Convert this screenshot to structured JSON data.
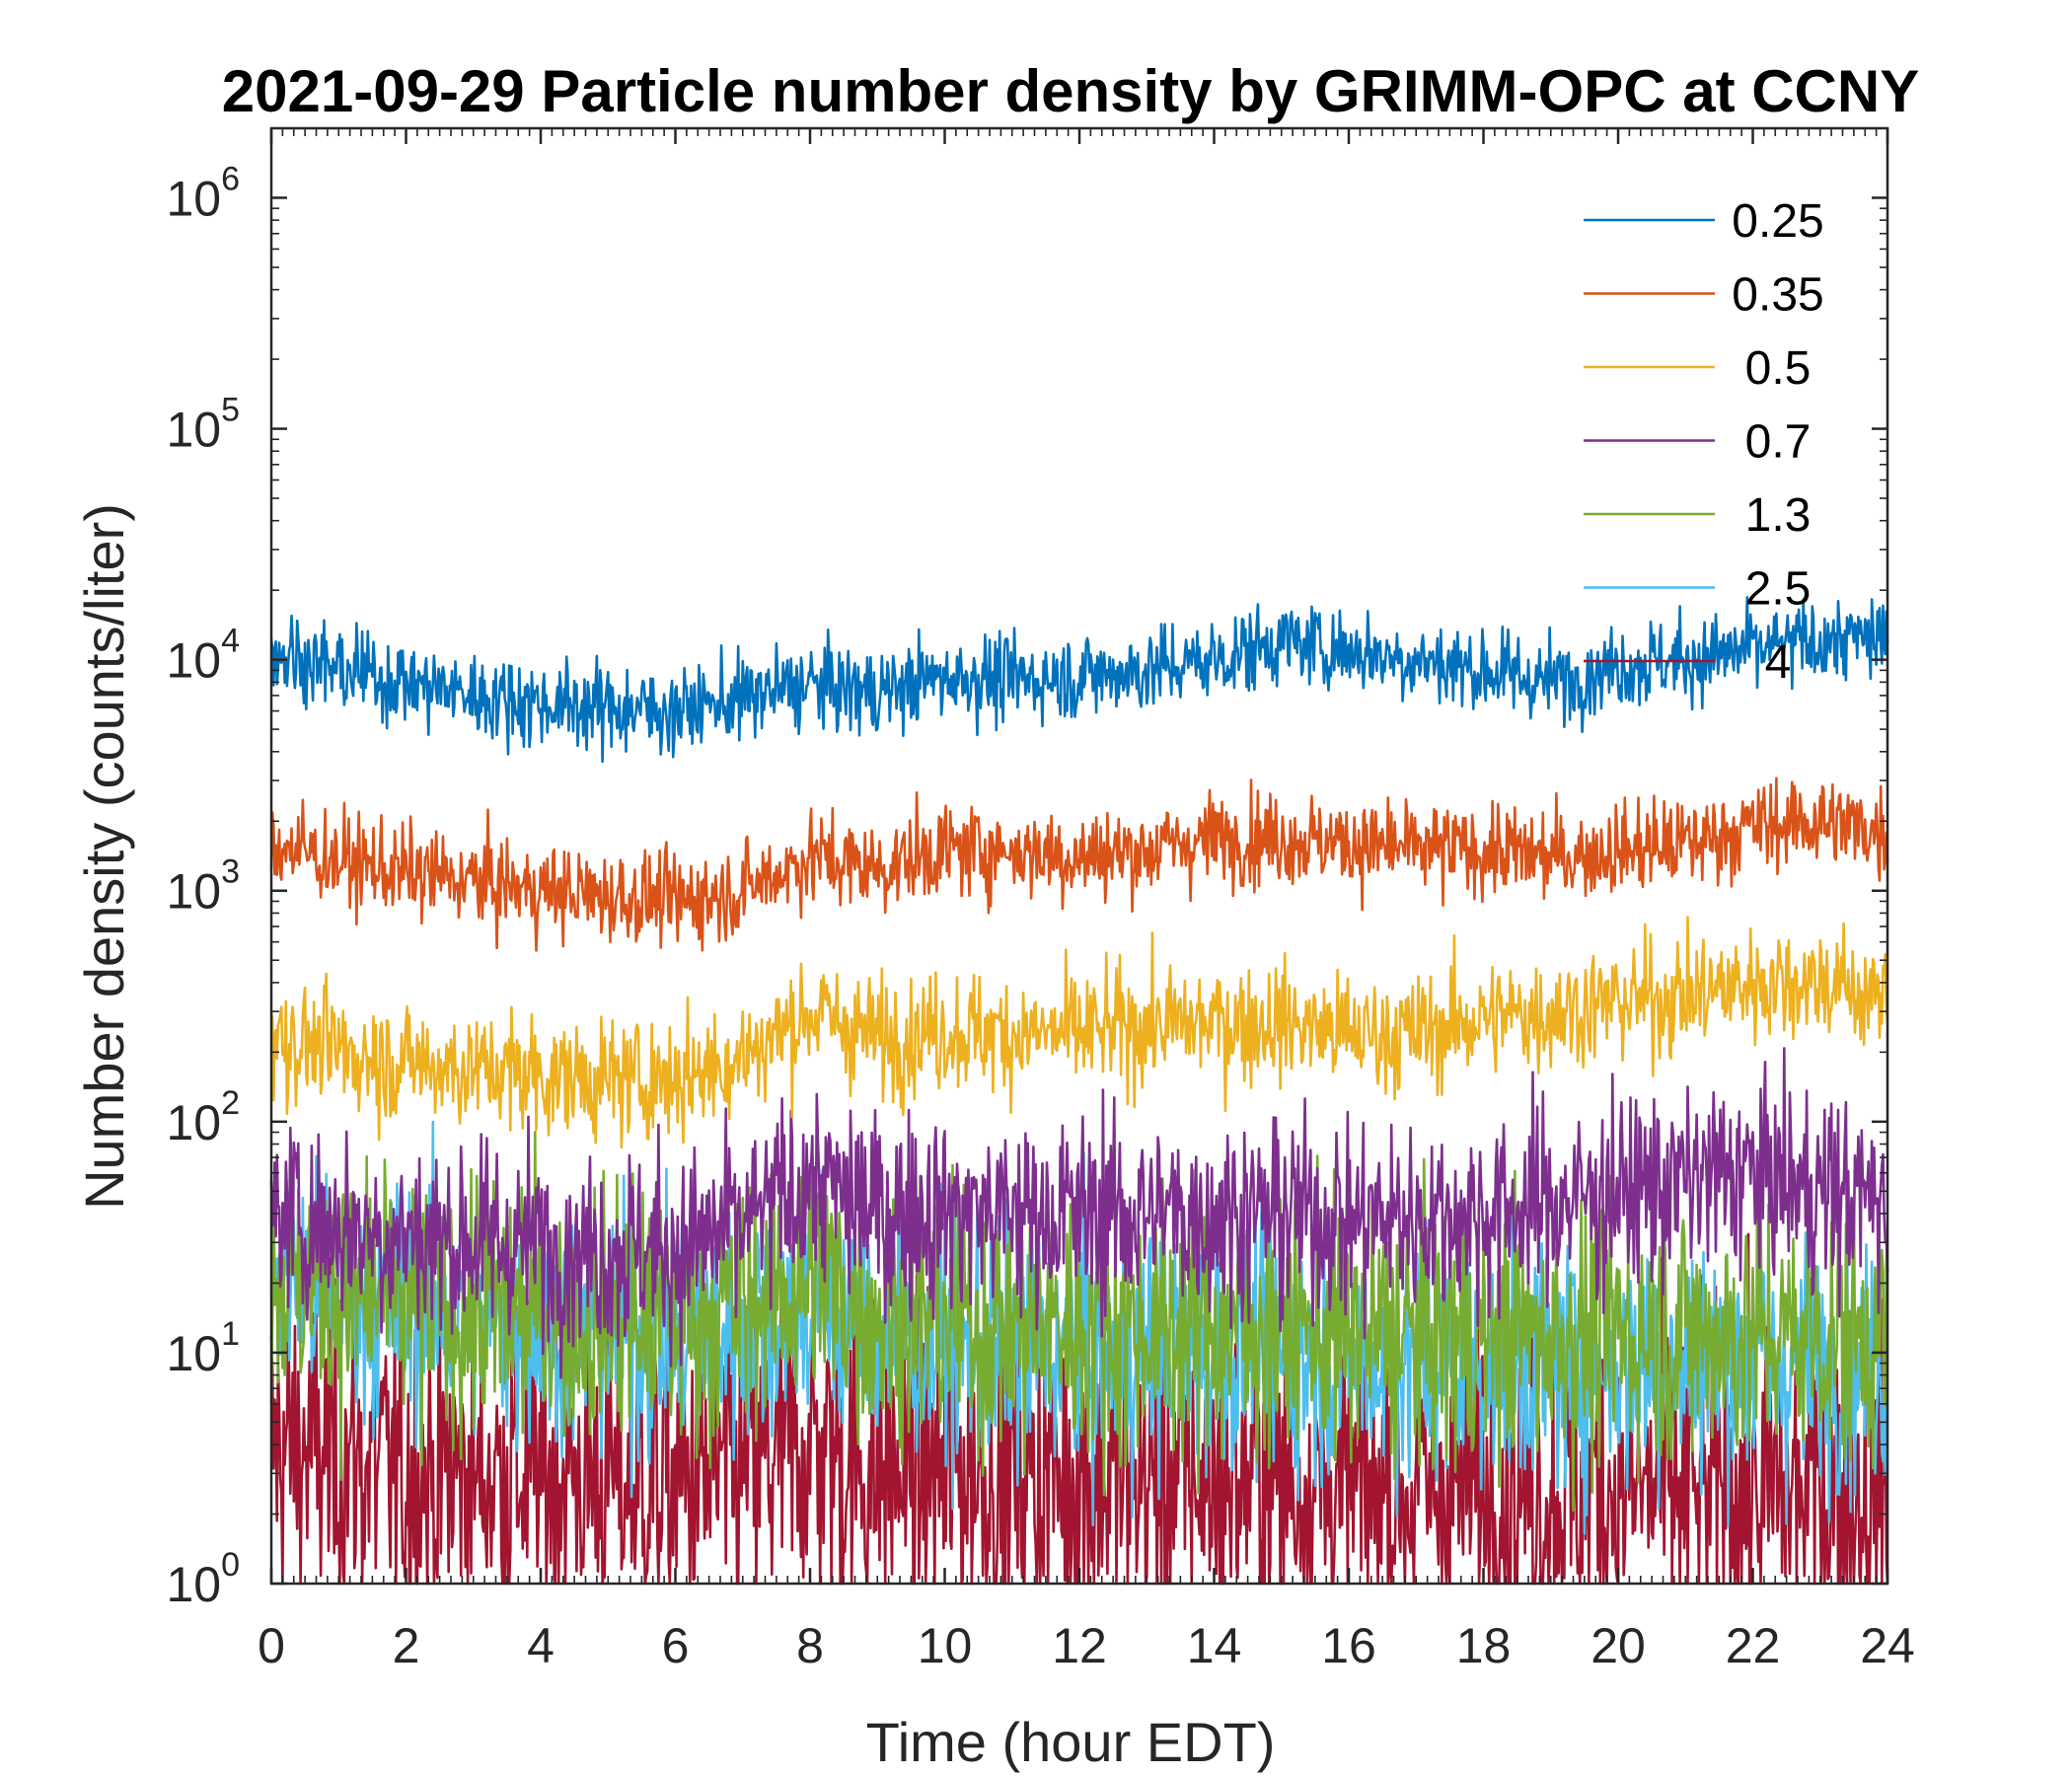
{
  "chart_data": {
    "type": "line",
    "title": "2021-09-29 Particle number density by GRIMM-OPC at CCNY",
    "xlabel": "Time (hour EDT)",
    "ylabel": "Number density (counts/liter)",
    "xlim": [
      0,
      24
    ],
    "ylim": [
      1,
      2000000
    ],
    "yscale": "log",
    "grid": false,
    "legend_position": "top-right",
    "x_ticks": [
      {
        "value": 0,
        "label": "0"
      },
      {
        "value": 2,
        "label": "2"
      },
      {
        "value": 4,
        "label": "4"
      },
      {
        "value": 6,
        "label": "6"
      },
      {
        "value": 8,
        "label": "8"
      },
      {
        "value": 10,
        "label": "10"
      },
      {
        "value": 12,
        "label": "12"
      },
      {
        "value": 14,
        "label": "14"
      },
      {
        "value": 16,
        "label": "16"
      },
      {
        "value": 18,
        "label": "18"
      },
      {
        "value": 20,
        "label": "20"
      },
      {
        "value": 22,
        "label": "22"
      },
      {
        "value": 24,
        "label": "24"
      }
    ],
    "y_ticks": [
      {
        "value": 1,
        "base": "10",
        "exp": "0"
      },
      {
        "value": 10,
        "base": "10",
        "exp": "1"
      },
      {
        "value": 100,
        "base": "10",
        "exp": "2"
      },
      {
        "value": 1000,
        "base": "10",
        "exp": "3"
      },
      {
        "value": 10000,
        "base": "10",
        "exp": "4"
      },
      {
        "value": 100000,
        "base": "10",
        "exp": "5"
      },
      {
        "value": 1000000,
        "base": "10",
        "exp": "6"
      }
    ],
    "x": [
      0,
      1,
      2,
      3,
      4,
      5,
      6,
      7,
      8,
      9,
      10,
      11,
      12,
      13,
      14,
      15,
      16,
      17,
      18,
      19,
      20,
      21,
      22,
      23,
      24
    ],
    "series": [
      {
        "name": "0.25",
        "color": "#0072BD",
        "noise": 0.13,
        "values": [
          11000,
          9000,
          8000,
          7000,
          6500,
          6200,
          6000,
          6800,
          7800,
          7200,
          8500,
          8200,
          8500,
          9000,
          10000,
          12000,
          11000,
          10000,
          9000,
          8000,
          9500,
          10000,
          11000,
          12000,
          12500
        ]
      },
      {
        "name": "0.35",
        "color": "#D95319",
        "noise": 0.14,
        "values": [
          1600,
          1350,
          1200,
          1100,
          1000,
          950,
          900,
          1000,
          1400,
          1250,
          1500,
          1500,
          1400,
          1500,
          1700,
          1700,
          1600,
          1500,
          1500,
          1400,
          1500,
          1600,
          1900,
          2000,
          1800
        ]
      },
      {
        "name": "0.5",
        "color": "#EDB120",
        "noise": 0.18,
        "values": [
          240,
          200,
          180,
          170,
          160,
          150,
          155,
          190,
          300,
          230,
          250,
          240,
          240,
          260,
          270,
          270,
          240,
          240,
          280,
          300,
          330,
          350,
          400,
          410,
          330
        ]
      },
      {
        "name": "0.7",
        "color": "#7E2F8E",
        "noise": 0.3,
        "values": [
          40,
          35,
          32,
          30,
          30,
          28,
          28,
          35,
          55,
          40,
          42,
          40,
          40,
          40,
          40,
          40,
          38,
          38,
          40,
          45,
          50,
          55,
          60,
          50,
          45
        ]
      },
      {
        "name": "1.3",
        "color": "#77AC30",
        "noise": 0.4,
        "values": [
          22,
          18,
          16,
          15,
          15,
          14,
          14,
          16,
          22,
          15,
          14,
          13,
          13,
          13,
          13,
          13,
          12,
          12,
          12,
          12,
          12,
          12,
          12,
          12,
          12
        ]
      },
      {
        "name": "2.5",
        "color": "#4DBEEE",
        "noise": 0.38,
        "values": [
          22,
          18,
          16,
          14,
          13,
          12,
          12,
          13,
          17,
          12,
          11,
          10,
          10,
          10,
          10,
          10,
          9,
          9,
          9,
          9,
          9,
          9,
          9,
          9,
          9
        ]
      },
      {
        "name": "4",
        "color": "#A2142F",
        "noise": 0.5,
        "values": [
          4,
          3.5,
          3,
          3,
          3,
          2.8,
          2.8,
          3,
          4,
          3,
          3,
          3,
          2.8,
          2.8,
          2.8,
          2.8,
          2.5,
          2.5,
          2.5,
          2.5,
          2.5,
          2.5,
          2.5,
          2.5,
          2.5
        ]
      }
    ]
  }
}
